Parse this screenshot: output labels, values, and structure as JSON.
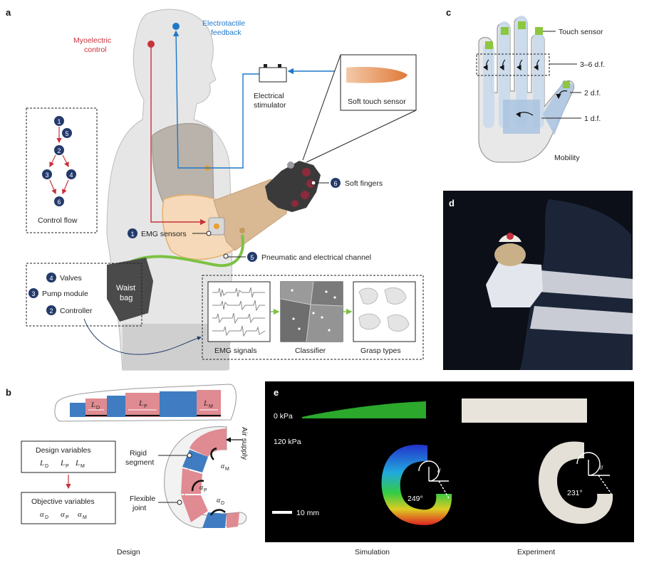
{
  "panel_labels": {
    "a": "a",
    "b": "b",
    "c": "c",
    "d": "d",
    "e": "e"
  },
  "panel_a": {
    "myoelectric": [
      "Myoelectric",
      "control"
    ],
    "electrotactile": [
      "Electrotactile",
      "feedback"
    ],
    "stimulator": [
      "Electrical",
      "stimulator"
    ],
    "soft_touch_sensor": "Soft touch sensor",
    "soft_fingers": "Soft fingers",
    "emg_sensors": "EMG sensors",
    "channel": "Pneumatic and electrical channel",
    "valves": "Valves",
    "pump": "Pump module",
    "controller": "Controller",
    "waist_bag": [
      "Waist",
      "bag"
    ],
    "control_flow": "Control flow",
    "flow_nodes": [
      "1",
      "5",
      "2",
      "3",
      "4",
      "6"
    ],
    "badges": {
      "emg": "1",
      "controller": "2",
      "pump": "3",
      "valves": "4",
      "channel": "5",
      "fingers": "6"
    },
    "emg_signals": "EMG signals",
    "classifier": "Classifier",
    "grasp_types": "Grasp types"
  },
  "panel_b": {
    "design_variables": "Design variables",
    "objective_variables": "Objective variables",
    "design_syms": [
      "L",
      "L",
      "L"
    ],
    "design_subs": [
      "D",
      "P",
      "M"
    ],
    "objective_syms": [
      "α",
      "α",
      "α"
    ],
    "objective_subs": [
      "D",
      "P",
      "M"
    ],
    "rigid": [
      "Rigid",
      "segment"
    ],
    "flexible": [
      "Flexible",
      "joint"
    ],
    "air_supply": "Air supply",
    "caption": "Design"
  },
  "panel_c": {
    "touch_sensor": "Touch sensor",
    "df_36": "3–6 d.f.",
    "df_2": "2 d.f.",
    "df_1": "1 d.f.",
    "mobility": "Mobility"
  },
  "panel_e": {
    "kpa0": "0 kPa",
    "kpa120": "120 kPa",
    "sim_angle": "249°",
    "exp_angle": "231°",
    "scale": "10 mm",
    "parallel_mark": "//",
    "caption_sim": "Simulation",
    "caption_exp": "Experiment"
  },
  "colors": {
    "red": "#c8323a",
    "blue": "#1f78c8",
    "navy": "#243a6b",
    "green": "#7cc243",
    "seg_blue": "#3f7cc2",
    "seg_pink": "#e08a92",
    "touch_green": "#8dc63f"
  }
}
